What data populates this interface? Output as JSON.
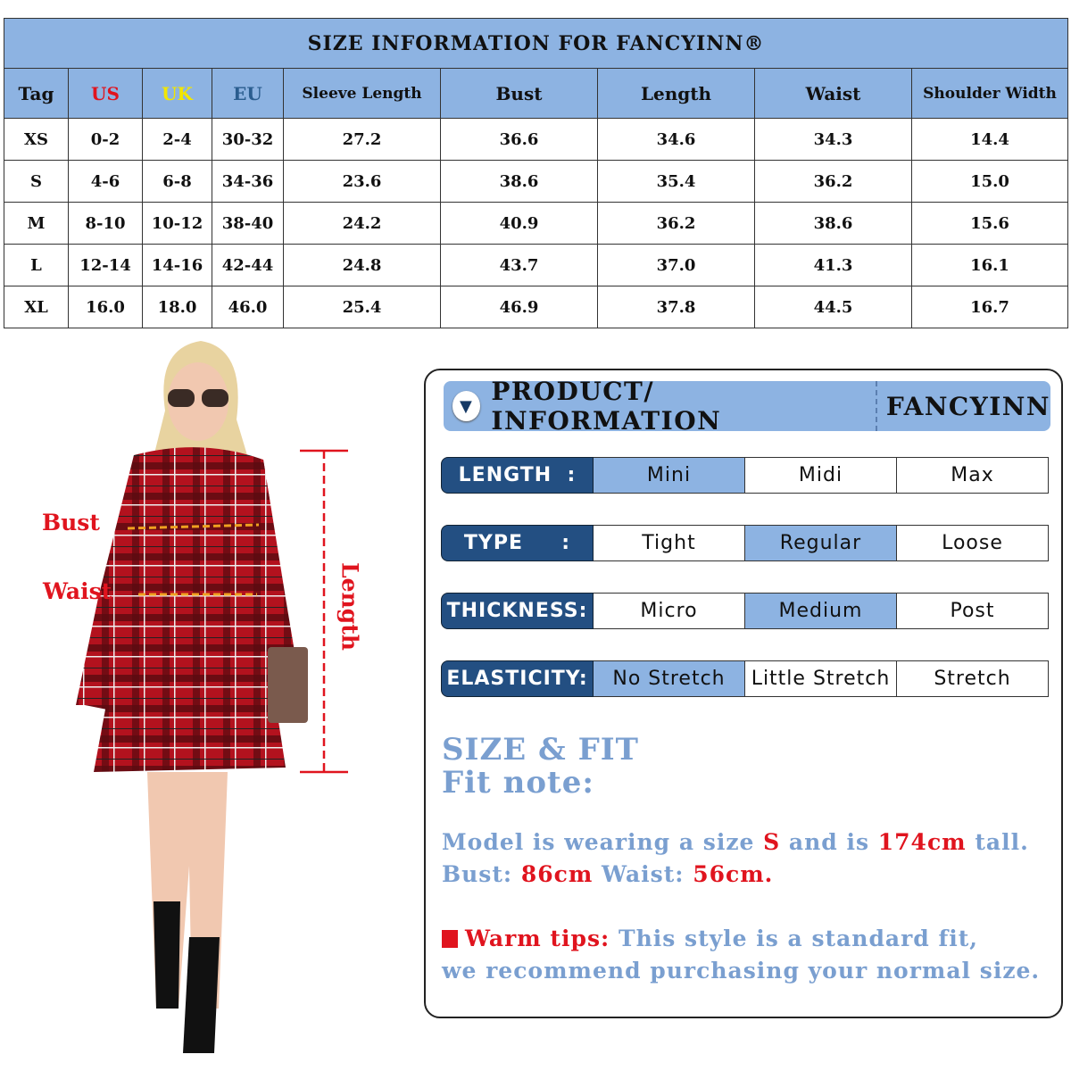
{
  "size_table": {
    "title": "SIZE INFORMATION FOR FANCYINN®",
    "headers": [
      "Tag",
      "US",
      "UK",
      "EU",
      "Sleeve Length",
      "Bust",
      "Length",
      "Waist",
      "Shoulder Width"
    ],
    "header_colors": {
      "US": "#e0141e",
      "UK": "#f2e600",
      "EU": "#2a5d8f"
    },
    "rows": [
      [
        "XS",
        "0-2",
        "2-4",
        "30-32",
        "27.2",
        "36.6",
        "34.6",
        "34.3",
        "14.4"
      ],
      [
        "S",
        "4-6",
        "6-8",
        "34-36",
        "23.6",
        "38.6",
        "35.4",
        "36.2",
        "15.0"
      ],
      [
        "M",
        "8-10",
        "10-12",
        "38-40",
        "24.2",
        "40.9",
        "36.2",
        "38.6",
        "15.6"
      ],
      [
        "L",
        "12-14",
        "14-16",
        "42-44",
        "24.8",
        "43.7",
        "37.0",
        "41.3",
        "16.1"
      ],
      [
        "XL",
        "16.0",
        "18.0",
        "46.0",
        "25.4",
        "46.9",
        "37.8",
        "44.5",
        "16.7"
      ]
    ]
  },
  "model": {
    "labels": {
      "bust": "Bust",
      "waist": "Waist",
      "length": "Length"
    }
  },
  "product_info": {
    "title": "PRODUCT/ INFORMATION",
    "brand": "FANCYINN",
    "icon": "triangle-down-icon",
    "attributes": [
      {
        "label": "LENGTH  :",
        "options": [
          "Mini",
          "Midi",
          "Max"
        ],
        "selected": 0
      },
      {
        "label": "TYPE     :",
        "options": [
          "Tight",
          "Regular",
          "Loose"
        ],
        "selected": 1
      },
      {
        "label": "THICKNESS:",
        "options": [
          "Micro",
          "Medium",
          "Post"
        ],
        "selected": 1
      },
      {
        "label": "ELASTICITY:",
        "options": [
          "No Stretch",
          "Little Stretch",
          "Stretch"
        ],
        "selected": 0
      }
    ],
    "size_fit": "SIZE & FIT",
    "fit_note": "Fit note:",
    "model_line": {
      "a": "Model is wearing a size ",
      "size": "S",
      "b": " and is ",
      "height": "174cm",
      "c": " tall."
    },
    "measure_line": {
      "a": "Bust: ",
      "bust": "86cm",
      "b": " Waist: ",
      "waist": "56cm."
    },
    "tips": {
      "label": "Warm tips:",
      "a": " This style is a standard fit,",
      "b": "we recommend purchasing your normal size."
    }
  },
  "colors": {
    "header_blue": "#8db3e2",
    "label_navy": "#234f82",
    "accent_red": "#e0141e",
    "text_blue": "#7a9fd0"
  }
}
